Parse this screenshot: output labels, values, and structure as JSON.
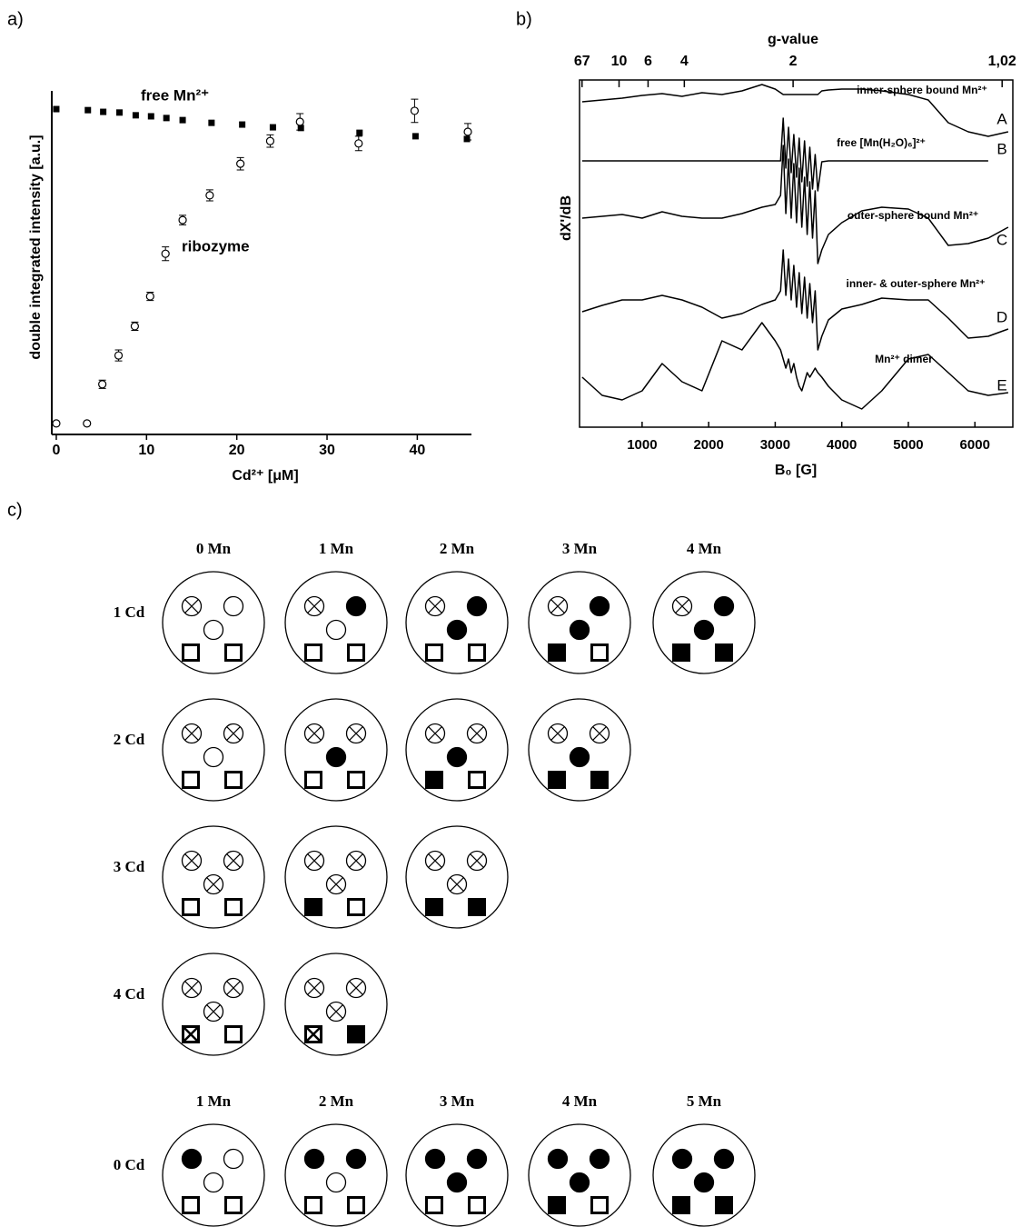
{
  "panel_labels": [
    "a)",
    "b)",
    "c)"
  ],
  "chart_data": [
    {
      "type": "scatter",
      "x_label": "Cd²⁺ [μM]",
      "y_label": "double integrated intensity [a.u.]",
      "xlim": [
        -0.5,
        46
      ],
      "xticks": [
        0,
        10,
        20,
        30,
        40
      ],
      "ylim": [
        0,
        1
      ],
      "series": [
        {
          "name": "free Mn²⁺",
          "marker": "square",
          "color": "#000000",
          "x": [
            0,
            3.5,
            5.2,
            7,
            8.8,
            10.5,
            12.2,
            14,
            17.2,
            20.6,
            24,
            27.1,
            33.6,
            39.8,
            45.5
          ],
          "values": [
            0.947,
            0.944,
            0.939,
            0.937,
            0.929,
            0.926,
            0.921,
            0.915,
            0.907,
            0.902,
            0.894,
            0.892,
            0.878,
            0.868,
            0.86
          ]
        },
        {
          "name": "ribozyme",
          "marker": "circle",
          "color": "#000000",
          "x": [
            0,
            3.4,
            5.1,
            6.9,
            8.7,
            10.4,
            12.1,
            14,
            17,
            20.4,
            23.7,
            27,
            33.5,
            39.7,
            45.6
          ],
          "values": [
            0.032,
            0.032,
            0.146,
            0.23,
            0.315,
            0.402,
            0.526,
            0.624,
            0.696,
            0.788,
            0.854,
            0.91,
            0.847,
            0.942,
            0.881
          ],
          "errors": [
            0,
            0,
            0.012,
            0.016,
            0.012,
            0.012,
            0.02,
            0.014,
            0.016,
            0.018,
            0.018,
            0.024,
            0.021,
            0.034,
            0.024
          ]
        }
      ]
    },
    {
      "type": "line",
      "x_label": "B₀ [G]",
      "y_label": "dX'/dB",
      "x2_label": "g-value",
      "xlim": [
        60,
        6570
      ],
      "xticks": [
        1000,
        2000,
        3000,
        4000,
        5000,
        6000
      ],
      "x2lim": [
        109,
        0.995
      ],
      "x2_scale": "reciprocal",
      "x2ticks": [
        67,
        10,
        6,
        4,
        2,
        {
          "value": 1.02,
          "label": "1,02"
        }
      ],
      "ylim": [
        0,
        382
      ],
      "x": [
        100,
        400,
        700,
        1000,
        1300,
        1600,
        1900,
        2200,
        2500,
        2800,
        3000,
        3080,
        3120,
        3160,
        3200,
        3240,
        3280,
        3320,
        3360,
        3400,
        3440,
        3480,
        3520,
        3560,
        3600,
        3640,
        3700,
        3800,
        4000,
        4300,
        4600,
        5000,
        5300,
        5600,
        5900,
        6200,
        6500
      ],
      "series": [
        {
          "name": "A",
          "annotation": "inner-sphere bound Mn²⁺",
          "color": "#000000",
          "values": [
            358,
            360,
            362,
            365,
            367,
            364,
            368,
            366,
            370,
            377,
            372,
            368,
            366,
            366,
            366,
            366,
            366,
            366,
            366,
            366,
            366,
            366,
            366,
            366,
            366,
            366,
            370,
            371,
            372,
            372,
            370,
            366,
            360,
            335,
            325,
            320,
            325
          ]
        },
        {
          "name": "B",
          "annotation": "free [Mn(H₂O)₆]²⁺",
          "color": "#000000",
          "values": [
            293,
            293,
            293,
            293,
            293,
            293,
            293,
            293,
            293,
            293,
            293,
            293,
            340,
            285,
            330,
            280,
            322,
            275,
            318,
            270,
            315,
            265,
            308,
            262,
            300,
            260,
            292,
            293,
            293,
            293,
            293,
            293,
            293,
            293,
            293,
            293,
            null
          ]
        },
        {
          "name": "C",
          "annotation": "outer-sphere bound Mn²⁺",
          "color": "#000000",
          "values": [
            230,
            232,
            234,
            230,
            237,
            232,
            230,
            230,
            235,
            242,
            245,
            255,
            310,
            235,
            295,
            230,
            290,
            225,
            285,
            220,
            275,
            212,
            270,
            208,
            260,
            180,
            195,
            212,
            225,
            238,
            242,
            240,
            230,
            200,
            202,
            208,
            220
          ]
        },
        {
          "name": "D",
          "annotation": "inner- & outer-sphere Mn²⁺",
          "color": "#000000",
          "values": [
            127,
            134,
            140,
            140,
            145,
            140,
            132,
            120,
            125,
            135,
            140,
            150,
            195,
            145,
            185,
            140,
            178,
            132,
            170,
            125,
            165,
            120,
            158,
            115,
            150,
            85,
            100,
            118,
            130,
            135,
            142,
            140,
            140,
            120,
            98,
            100,
            108
          ]
        },
        {
          "name": "E",
          "annotation": "Mn²⁺ dimer",
          "color": "#000000",
          "values": [
            55,
            35,
            30,
            40,
            70,
            50,
            40,
            95,
            85,
            115,
            95,
            85,
            75,
            65,
            75,
            60,
            70,
            55,
            45,
            40,
            50,
            60,
            55,
            60,
            65,
            60,
            55,
            45,
            30,
            20,
            40,
            75,
            80,
            60,
            40,
            35,
            38
          ]
        }
      ]
    }
  ],
  "diagram": {
    "top_columns": [
      "0 Mn",
      "1 Mn",
      "2 Mn",
      "3 Mn",
      "4 Mn"
    ],
    "top_rows": [
      "1 Cd",
      "2 Cd",
      "3 Cd",
      "4 Cd"
    ],
    "bottom_columns": [
      "1 Mn",
      "2 Mn",
      "3 Mn",
      "4 Mn",
      "5 Mn"
    ],
    "bottom_rows": [
      "0 Cd"
    ]
  }
}
